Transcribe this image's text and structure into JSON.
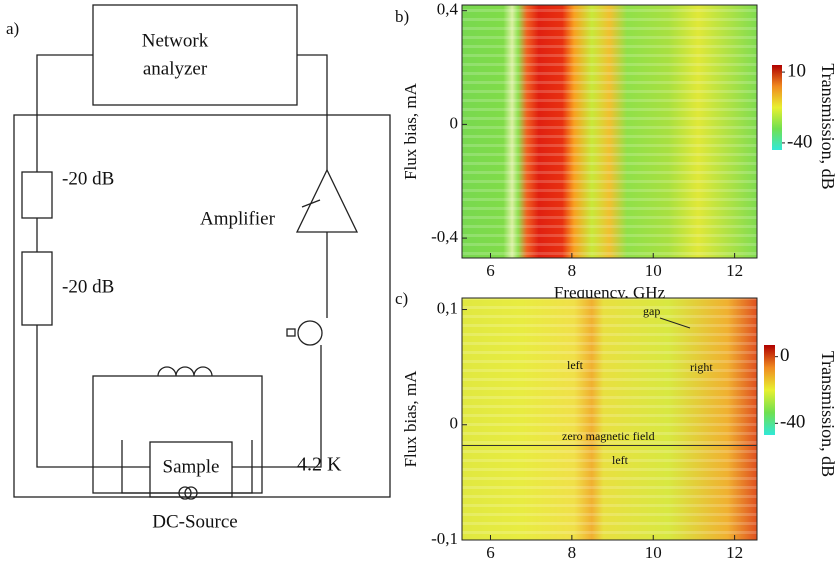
{
  "panel_a": {
    "label": "a)",
    "analyzer": [
      "Network",
      "analyzer"
    ],
    "attenuators": [
      "-20 dB",
      "-20 dB"
    ],
    "amplifier": "Amplifier",
    "sample": "Sample",
    "temperature": "4.2 K",
    "source": "DC-Source"
  },
  "chart_data": [
    {
      "type": "heatmap",
      "panel": "b)",
      "xlabel": "Frequency, GHz",
      "ylabel": "Flux bias, mA",
      "colorbar_label": "Transmission, dB",
      "xlim": [
        5.3,
        12.55
      ],
      "xticks": [
        6,
        8,
        10,
        12
      ],
      "ylim": [
        -0.47,
        0.42
      ],
      "yticks": [
        {
          "value": -0.4,
          "label": "-0,4"
        },
        0,
        {
          "value": 0.4,
          "label": "0,4"
        }
      ],
      "clim": [
        -45,
        15
      ],
      "cticks": [
        -40,
        10
      ],
      "colormap": [
        "#30e8d8",
        "#70e050",
        "#e8f030",
        "#f08a20",
        "#b00000"
      ]
    },
    {
      "type": "heatmap",
      "panel": "c)",
      "xlabel": "Frequency, GHz",
      "ylabel": "Flux bias, mA",
      "colorbar_label": "Transmission, dB",
      "xlim": [
        5.3,
        12.55
      ],
      "xticks": [
        6,
        8,
        10,
        12
      ],
      "ylim": [
        -0.1,
        0.11
      ],
      "yticks": [
        {
          "value": -0.1,
          "label": "-0,1"
        },
        0,
        {
          "value": 0.1,
          "label": "0,1"
        }
      ],
      "clim": [
        -47,
        7
      ],
      "cticks": [
        -40,
        0
      ],
      "colormap": [
        "#30e8d8",
        "#70e050",
        "#e8f030",
        "#f08a20",
        "#b00000"
      ],
      "hline": -0.018,
      "annotations": [
        "gap",
        "left",
        "right",
        "zero magnetic field",
        "left"
      ]
    }
  ]
}
